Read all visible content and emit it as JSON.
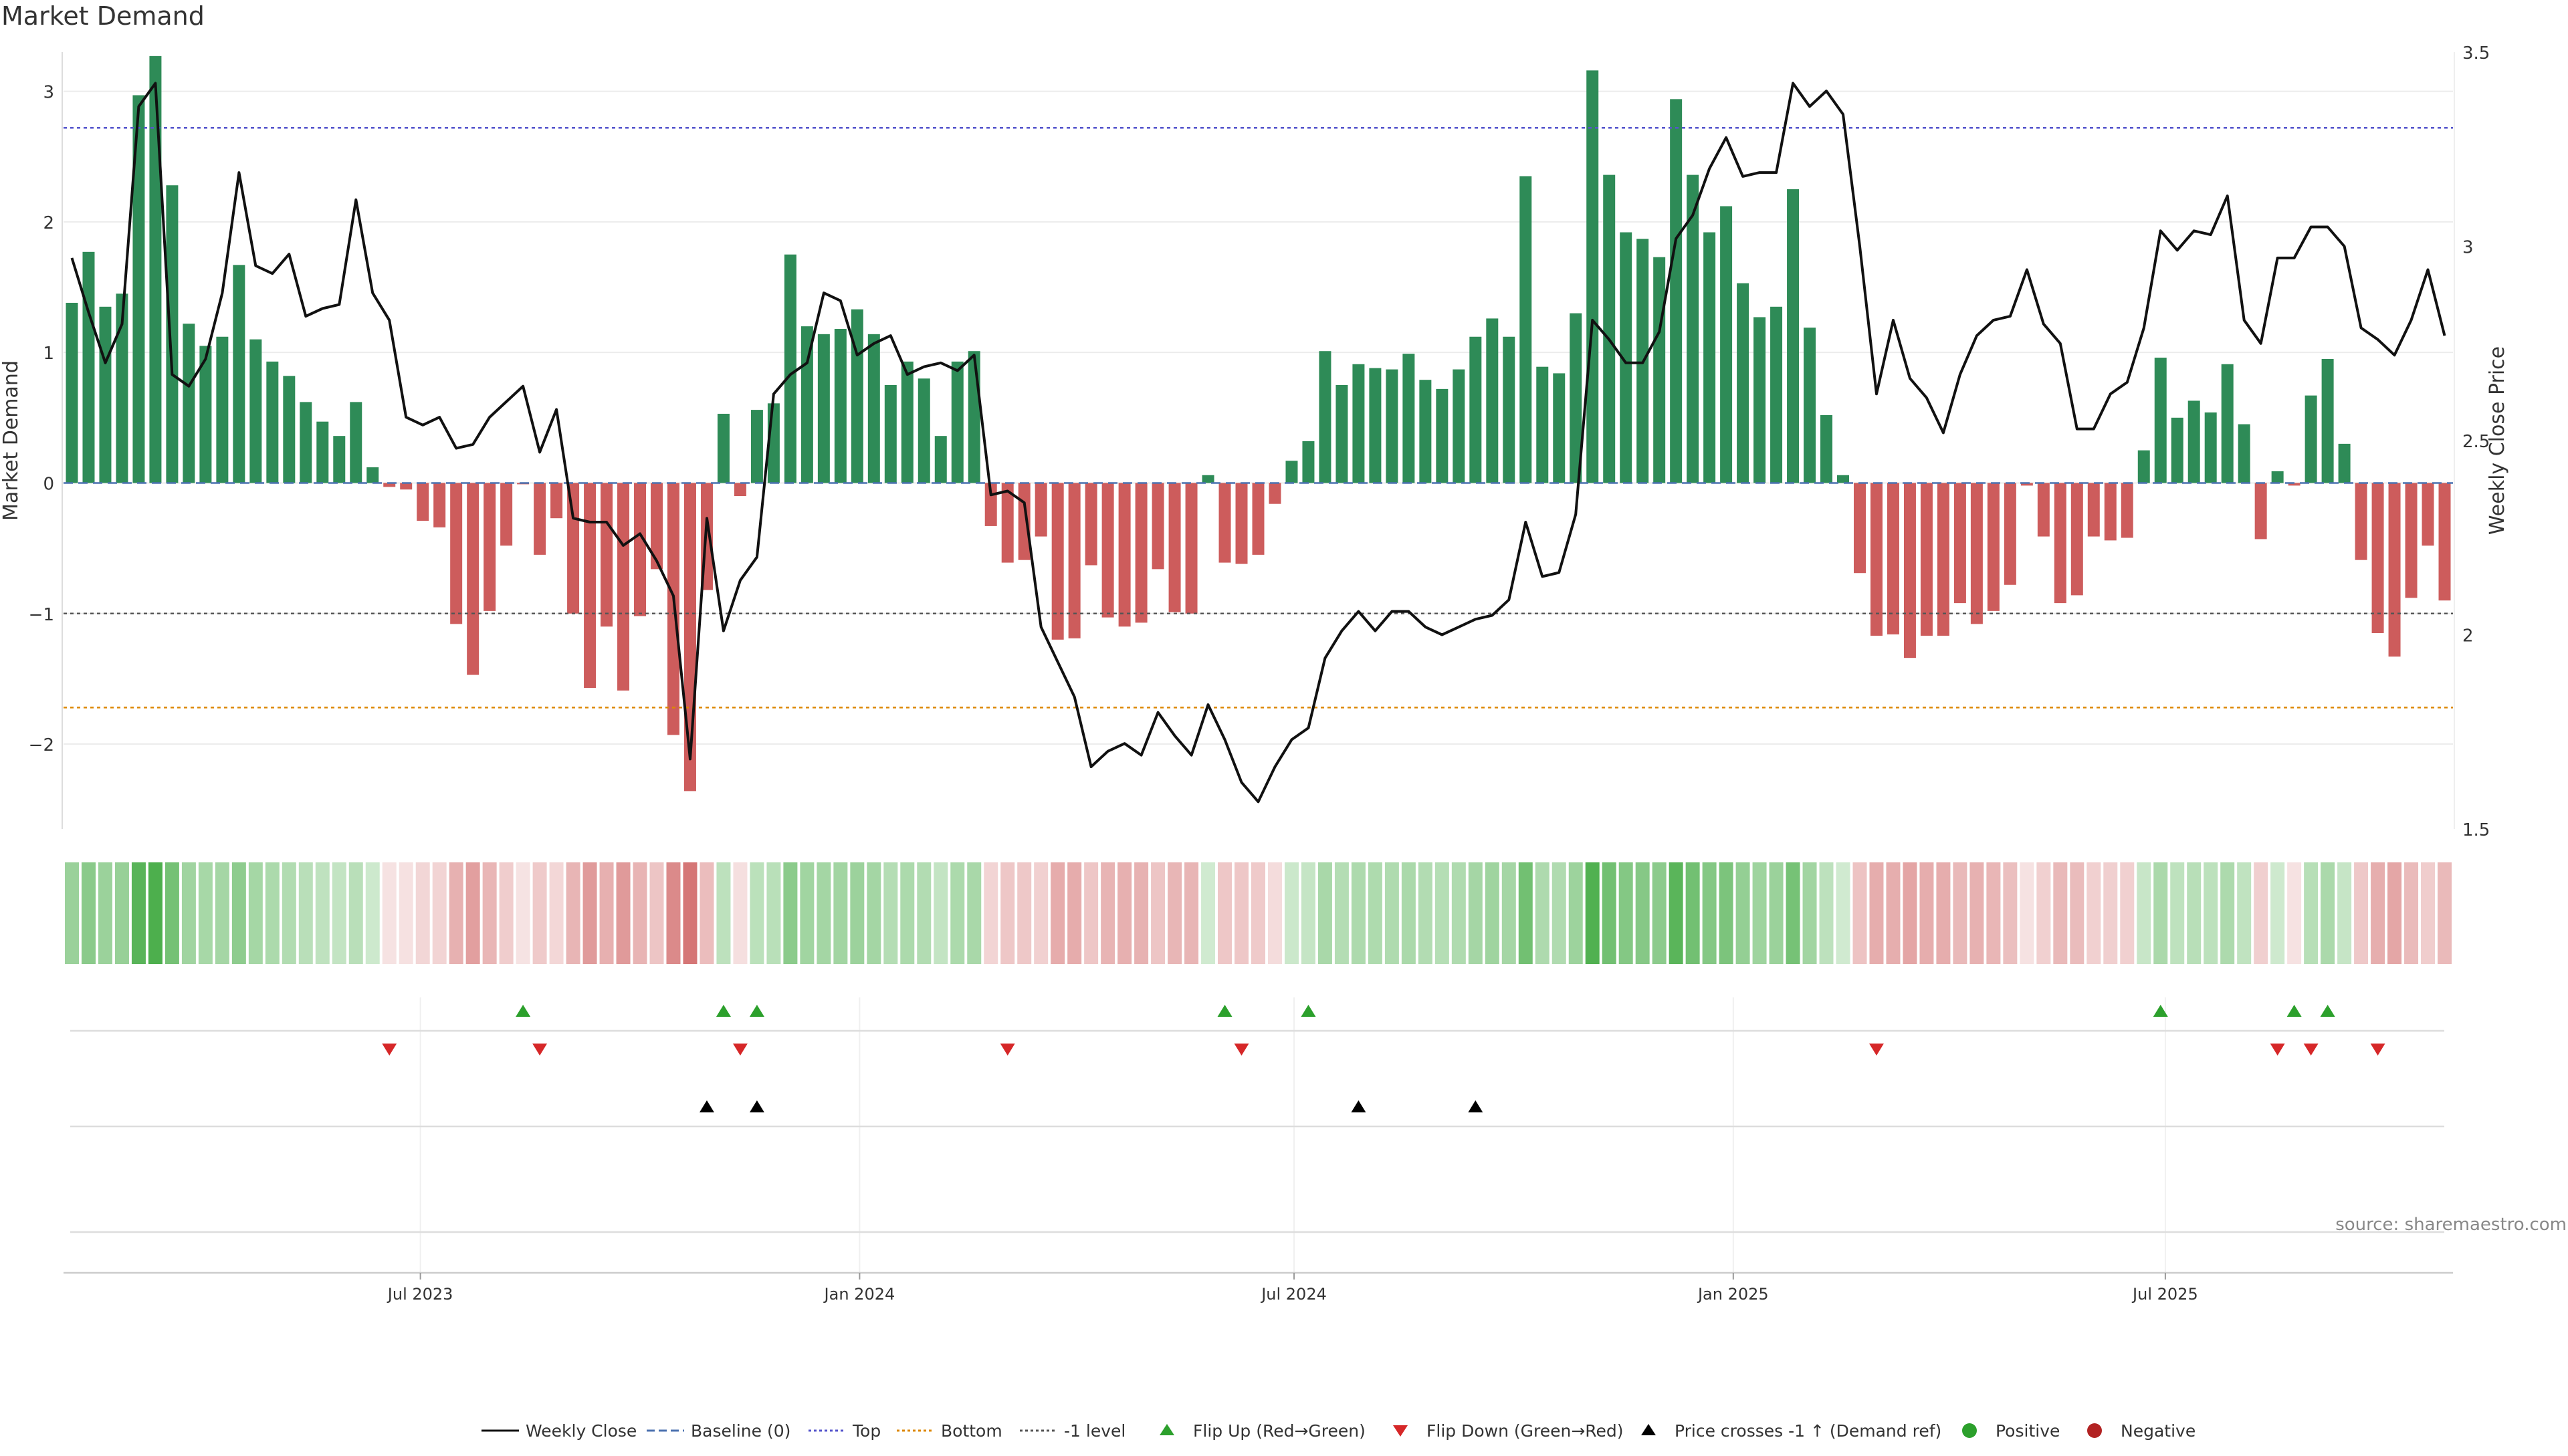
{
  "title": "Market Demand",
  "source": "source: sharemaestro.com",
  "colors": {
    "positive": "#2e8b57",
    "negative": "#cd5c5c",
    "price_line": "#111111",
    "baseline": "#4c72b0",
    "top_line": "#5555cc",
    "bottom_line": "#dd8800",
    "minus1_line": "#555555",
    "flip_up": "#2ca02c",
    "flip_down": "#d62728",
    "cross": "#000000",
    "dot_positive": "#2ca02c",
    "dot_negative": "#b22222"
  },
  "legend": [
    {
      "label": "Weekly Close",
      "kind": "line-solid",
      "color": "#111111"
    },
    {
      "label": "Baseline (0)",
      "kind": "line-dash",
      "color": "#4c72b0"
    },
    {
      "label": "Top",
      "kind": "line-dot",
      "color": "#5555cc"
    },
    {
      "label": "Bottom",
      "kind": "line-dot",
      "color": "#dd8800"
    },
    {
      "label": "-1 level",
      "kind": "line-dot",
      "color": "#555555"
    },
    {
      "label": "Flip Up (Red→Green)",
      "kind": "tri-up",
      "color": "#2ca02c"
    },
    {
      "label": "Flip Down (Green→Red)",
      "kind": "tri-down",
      "color": "#d62728"
    },
    {
      "label": "Price crosses -1 ↑ (Demand ref)",
      "kind": "tri-up",
      "color": "#000000"
    },
    {
      "label": "Positive",
      "kind": "dot",
      "color": "#2ca02c"
    },
    {
      "label": "Negative",
      "kind": "dot",
      "color": "#b22222"
    }
  ],
  "chart_data": {
    "type": "bar",
    "title": "Market Demand",
    "ylabel": "Market Demand",
    "y2label": "Weekly Close Price",
    "ylim": [
      -2.65,
      3.3
    ],
    "y2lim": [
      1.5,
      3.5
    ],
    "yticks": [
      -2,
      -1,
      0,
      1,
      2,
      3
    ],
    "y2ticks": [
      1.5,
      2,
      2.5,
      3,
      3.5
    ],
    "ytick_labels": [
      "−2",
      "−1",
      "0",
      "1",
      "2",
      "3"
    ],
    "y2tick_labels": [
      "1.5",
      "2",
      "2.5",
      "3",
      "3.5"
    ],
    "x_start": "2023-02-05",
    "x_step_days": 7,
    "xtick_labels": [
      "Jul 2023",
      "Jan 2024",
      "Jul 2024",
      "Jan 2025",
      "Jul 2025"
    ],
    "xtick_dates": [
      "2023-07-01",
      "2024-01-01",
      "2024-07-01",
      "2025-01-01",
      "2025-07-01"
    ],
    "reference_lines": {
      "baseline": 0,
      "top": 2.72,
      "bottom": -1.72,
      "minus_one": -1
    },
    "series": [
      {
        "name": "Market Demand",
        "values": [
          1.38,
          1.77,
          1.35,
          1.45,
          2.97,
          3.27,
          2.28,
          1.22,
          1.05,
          1.12,
          1.67,
          1.1,
          0.93,
          0.82,
          0.62,
          0.47,
          0.36,
          0.62,
          0.12,
          -0.03,
          -0.05,
          -0.29,
          -0.34,
          -1.08,
          -1.47,
          -0.98,
          -0.48,
          -0.01,
          -0.55,
          -0.27,
          -1.0,
          -1.57,
          -1.1,
          -1.59,
          -1.02,
          -0.66,
          -1.93,
          -2.36,
          -0.82,
          0.53,
          -0.1,
          0.56,
          0.61,
          1.75,
          1.2,
          1.14,
          1.18,
          1.33,
          1.14,
          0.75,
          0.93,
          0.8,
          0.36,
          0.93,
          1.01,
          -0.33,
          -0.61,
          -0.59,
          -0.41,
          -1.2,
          -1.19,
          -0.63,
          -1.03,
          -1.1,
          -1.07,
          -0.66,
          -0.99,
          -1.0,
          0.06,
          -0.61,
          -0.62,
          -0.55,
          -0.16,
          0.17,
          0.32,
          1.01,
          0.75,
          0.91,
          0.88,
          0.87,
          0.99,
          0.79,
          0.72,
          0.87,
          1.12,
          1.26,
          1.12,
          2.35,
          0.89,
          0.84,
          1.3,
          3.16,
          2.36,
          1.92,
          1.87,
          1.73,
          2.94,
          2.36,
          1.92,
          2.12,
          1.53,
          1.27,
          1.35,
          2.25,
          1.19,
          0.52,
          0.06,
          -0.69,
          -1.17,
          -1.16,
          -1.34,
          -1.17,
          -1.17,
          -0.92,
          -1.08,
          -0.98,
          -0.78,
          -0.02,
          -0.41,
          -0.92,
          -0.86,
          -0.41,
          -0.44,
          -0.42,
          0.25,
          0.96,
          0.5,
          0.63,
          0.54,
          0.91,
          0.45,
          -0.43,
          0.09,
          -0.02,
          0.67,
          0.95,
          0.3,
          -0.59,
          -1.15,
          -1.33,
          -0.88,
          -0.48,
          -0.9
        ]
      },
      {
        "name": "Weekly Close",
        "axis": "right",
        "values": [
          2.97,
          2.83,
          2.7,
          2.8,
          3.36,
          3.42,
          2.67,
          2.64,
          2.71,
          2.88,
          3.19,
          2.95,
          2.93,
          2.98,
          2.82,
          2.84,
          2.85,
          3.12,
          2.88,
          2.81,
          2.56,
          2.54,
          2.56,
          2.48,
          2.49,
          2.56,
          2.6,
          2.64,
          2.47,
          2.58,
          2.3,
          2.29,
          2.29,
          2.23,
          2.26,
          2.19,
          2.1,
          1.68,
          2.3,
          2.01,
          2.14,
          2.2,
          2.62,
          2.67,
          2.7,
          2.88,
          2.86,
          2.72,
          2.75,
          2.77,
          2.67,
          2.69,
          2.7,
          2.68,
          2.72,
          2.36,
          2.37,
          2.34,
          2.02,
          1.93,
          1.84,
          1.66,
          1.7,
          1.72,
          1.69,
          1.8,
          1.74,
          1.69,
          1.82,
          1.73,
          1.62,
          1.57,
          1.66,
          1.73,
          1.76,
          1.94,
          2.01,
          2.06,
          2.01,
          2.06,
          2.06,
          2.02,
          2.0,
          2.02,
          2.04,
          2.05,
          2.09,
          2.29,
          2.15,
          2.16,
          2.31,
          2.81,
          2.76,
          2.7,
          2.7,
          2.78,
          3.02,
          3.08,
          3.2,
          3.28,
          3.18,
          3.19,
          3.19,
          3.42,
          3.36,
          3.4,
          3.34,
          3.0,
          2.62,
          2.81,
          2.66,
          2.61,
          2.52,
          2.67,
          2.77,
          2.81,
          2.82,
          2.94,
          2.8,
          2.75,
          2.53,
          2.53,
          2.62,
          2.65,
          2.79,
          3.04,
          2.99,
          3.04,
          3.03,
          3.13,
          2.81,
          2.75,
          2.97,
          2.97,
          3.05,
          3.05,
          3.0,
          2.79,
          2.76,
          2.72,
          2.81,
          2.94,
          2.77
        ]
      }
    ],
    "strip_row": {
      "name": "Demand strength",
      "encoding": "color intensity of demand value"
    },
    "signal_rows": [
      {
        "name": "Flip Up (Red→Green)",
        "marker": "tri-up",
        "indices": [
          27,
          39,
          41,
          69,
          74,
          125,
          133,
          135
        ]
      },
      {
        "name": "Flip Down (Green→Red)",
        "marker": "tri-down",
        "indices": [
          19,
          28,
          40,
          56,
          70,
          108,
          132,
          134,
          138
        ]
      },
      {
        "name": "Price crosses -1 ↑ (Demand ref)",
        "marker": "tri-up",
        "indices": [
          38,
          41,
          77,
          84
        ]
      },
      {
        "name": "Positive / Negative",
        "marker": "dot",
        "indices": []
      }
    ]
  }
}
